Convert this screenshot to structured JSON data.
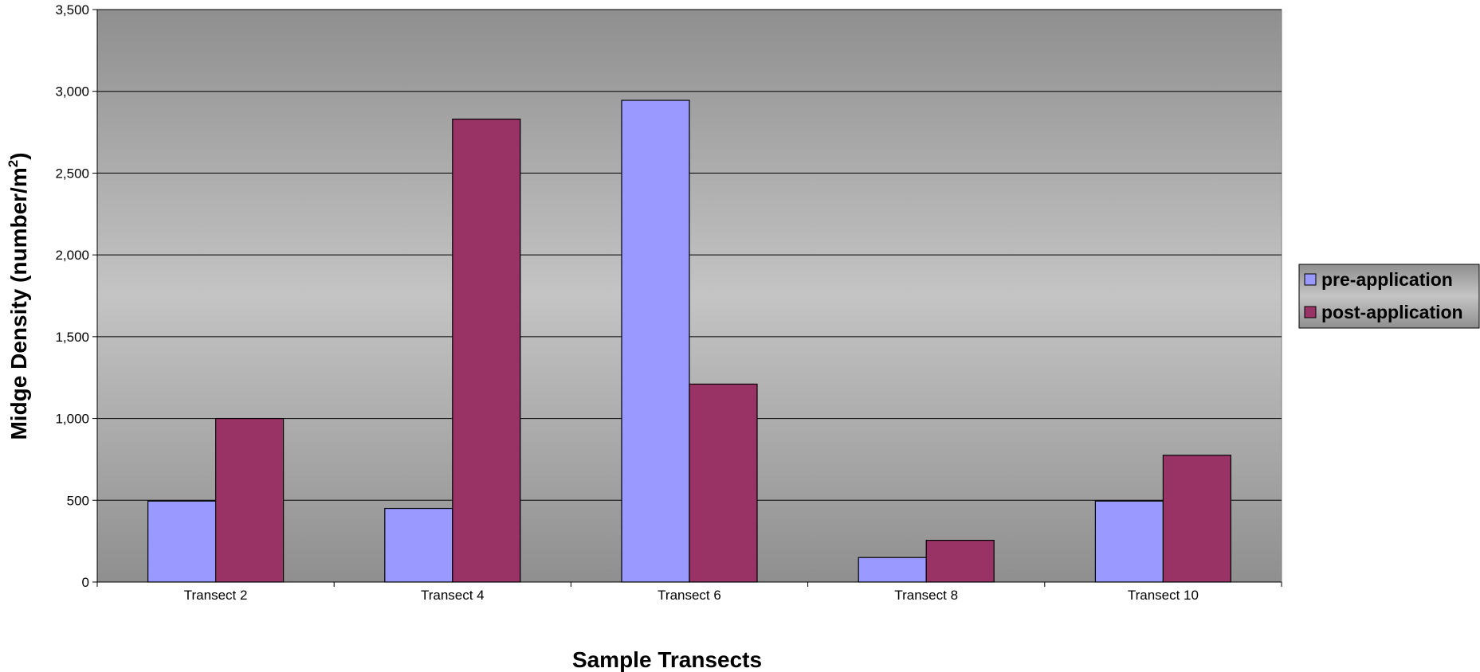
{
  "chart_data": {
    "type": "bar",
    "title": "",
    "xlabel": "Sample Transects",
    "ylabel": "Midge Density (number/m",
    "ylabel_superscript": "2",
    "ylabel_suffix": ")",
    "categories": [
      "Transect 2",
      "Transect 4",
      "Transect 6",
      "Transect 8",
      "Transect 10"
    ],
    "series": [
      {
        "name": "pre-application",
        "color": "#9999ff",
        "values": [
          495,
          450,
          2945,
          150,
          495
        ]
      },
      {
        "name": "post-application",
        "color": "#993366",
        "values": [
          1000,
          2830,
          1210,
          255,
          775
        ]
      }
    ],
    "ylim": [
      0,
      3500
    ],
    "yticks": [
      0,
      500,
      1000,
      1500,
      2000,
      2500,
      3000,
      3500
    ],
    "ytick_labels": [
      "0",
      "500",
      "1,000",
      "1,500",
      "2,000",
      "2,500",
      "3,000",
      "3,500"
    ],
    "grid": true,
    "legend_position": "right"
  }
}
